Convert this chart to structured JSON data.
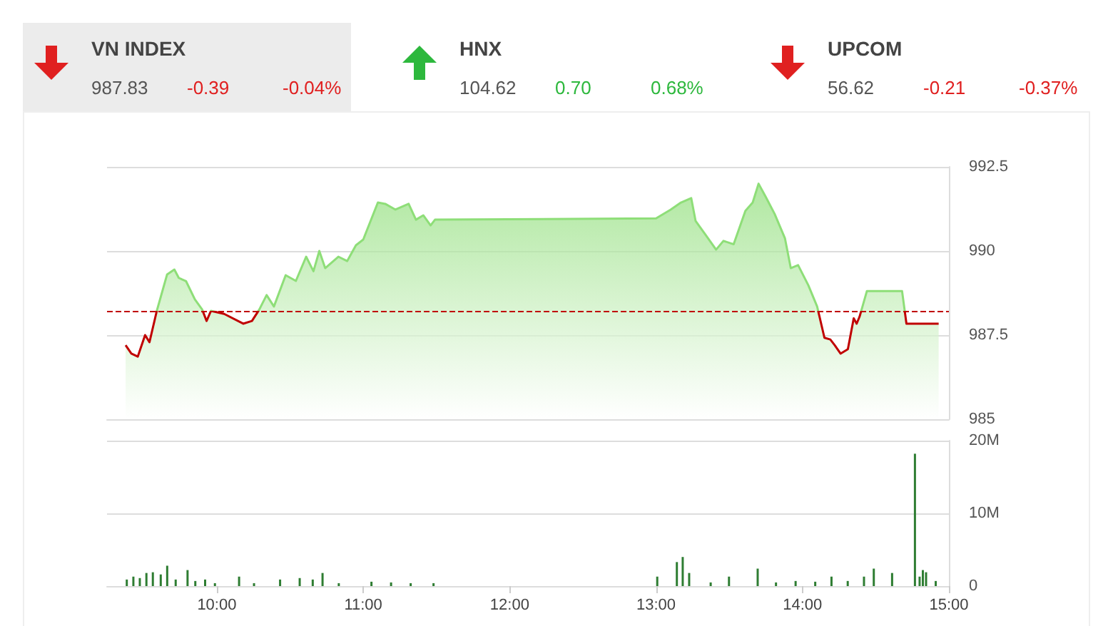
{
  "chart_data": [
    {
      "type": "other",
      "annotations": [
        "VN INDEX",
        "987.83",
        "-0.39",
        "-0.04%",
        "HNX",
        "104.62",
        "0.70",
        "0.68%",
        "UPCOM",
        "56.62",
        "-0.21",
        "-0.37%"
      ]
    },
    {
      "type": "area",
      "tick_labels": "y",
      "grid": "y",
      "xlim": [
        9.25,
        15.0
      ],
      "ylim": [
        985,
        992.5
      ],
      "yticks": [
        985,
        987.5,
        990,
        992.5
      ],
      "ref_lines": [
        {
          "axis": "y",
          "value": 988.22,
          "color": "#c00000",
          "line_style": "dashed"
        }
      ],
      "series": [
        {
          "color": "#8ede78",
          "x": [
            9.377,
            9.416,
            9.46,
            9.51,
            9.54,
            9.59,
            9.66,
            9.71,
            9.74,
            9.79,
            9.85,
            9.9,
            9.93,
            9.96,
            10.05,
            10.18,
            10.24,
            10.29,
            10.34,
            10.39,
            10.47,
            10.54,
            10.61,
            10.66,
            10.7,
            10.74,
            10.83,
            10.89,
            10.95,
            11.0,
            11.1,
            11.15,
            11.22,
            11.31,
            11.36,
            11.41,
            11.46,
            11.49,
            13.0,
            13.1,
            13.17,
            13.24,
            13.27,
            13.34,
            13.41,
            13.46,
            13.53,
            13.61,
            13.66,
            13.7,
            13.75,
            13.81,
            13.88,
            13.92,
            13.97,
            14.04,
            14.1,
            14.15,
            14.19,
            14.22,
            14.26,
            14.31,
            14.35,
            14.37,
            14.39,
            14.44,
            14.68,
            14.71,
            14.93
          ],
          "values": [
            987.2,
            986.95,
            986.86,
            987.5,
            987.29,
            988.22,
            989.3,
            989.45,
            989.2,
            989.1,
            988.56,
            988.26,
            987.92,
            988.22,
            988.13,
            987.84,
            987.92,
            988.26,
            988.69,
            988.35,
            989.28,
            989.11,
            989.83,
            989.4,
            990.0,
            989.49,
            989.83,
            989.7,
            990.17,
            990.34,
            991.44,
            991.4,
            991.23,
            991.4,
            990.93,
            991.06,
            990.76,
            990.93,
            990.97,
            991.23,
            991.44,
            991.57,
            990.89,
            990.47,
            990.04,
            990.3,
            990.2,
            991.19,
            991.44,
            992.0,
            991.6,
            991.1,
            990.38,
            989.49,
            989.58,
            988.98,
            988.35,
            987.42,
            987.37,
            987.2,
            986.95,
            987.08,
            988.0,
            987.84,
            988.05,
            988.81,
            988.81,
            987.84,
            987.84
          ]
        }
      ]
    },
    {
      "type": "bar",
      "grid": "y",
      "xlim": [
        9.25,
        15.0
      ],
      "xticks": [
        {
          "value": 10,
          "label": "10:00"
        },
        {
          "value": 11,
          "label": "11:00"
        },
        {
          "value": 12,
          "label": "12:00"
        },
        {
          "value": 13,
          "label": "13:00"
        },
        {
          "value": 14,
          "label": "14:00"
        },
        {
          "value": 15,
          "label": "15:00"
        }
      ],
      "ylim": [
        0,
        20
      ],
      "yticks": [
        0,
        {
          "value": 10,
          "label": "10M"
        },
        {
          "value": 20,
          "label": "20M"
        }
      ],
      "series": [
        {
          "color": "#2e7d32",
          "x": [
            9.385,
            9.43,
            9.474,
            9.519,
            9.563,
            9.617,
            9.661,
            9.719,
            9.8,
            9.853,
            9.92,
            9.987,
            10.152,
            10.254,
            10.432,
            10.566,
            10.655,
            10.722,
            10.833,
            11.056,
            11.19,
            11.324,
            11.48,
            13.008,
            13.142,
            13.182,
            13.226,
            13.373,
            13.498,
            13.694,
            13.819,
            13.953,
            14.087,
            14.198,
            14.309,
            14.42,
            14.487,
            14.612,
            14.768,
            14.8,
            14.822,
            14.844,
            14.91
          ],
          "values": [
            0.9,
            1.3,
            1.1,
            1.8,
            1.9,
            1.6,
            2.8,
            0.9,
            2.2,
            0.7,
            0.9,
            0.4,
            1.3,
            0.4,
            0.9,
            1.1,
            0.9,
            1.8,
            0.4,
            0.6,
            0.5,
            0.4,
            0.4,
            1.3,
            3.3,
            4.0,
            1.8,
            0.5,
            1.3,
            2.4,
            0.5,
            0.7,
            0.6,
            1.3,
            0.7,
            1.3,
            2.4,
            1.8,
            18.2,
            1.3,
            2.2,
            1.9,
            0.7
          ]
        }
      ]
    }
  ]
}
